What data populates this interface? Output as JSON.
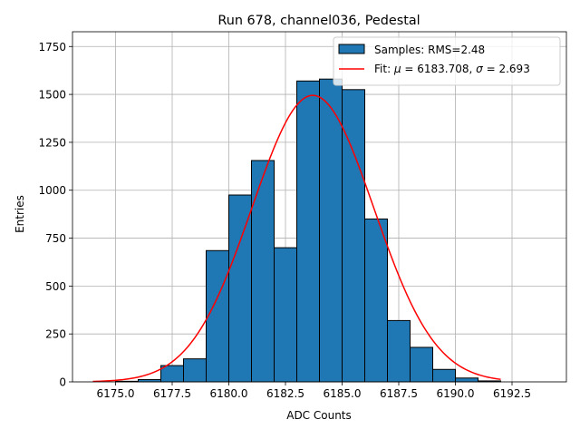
{
  "chart_data": {
    "type": "bar",
    "title": "Run 678, channel036, Pedestal",
    "xlabel": "ADC Counts",
    "ylabel": "Entries",
    "xlim": [
      6173.1,
      6194.9
    ],
    "ylim": [
      0,
      1827
    ],
    "grid": true,
    "legend_position": "top-right",
    "x_ticks": [
      6175.0,
      6177.5,
      6180.0,
      6182.5,
      6185.0,
      6187.5,
      6190.0,
      6192.5
    ],
    "x_tick_labels": [
      "6175.0",
      "6177.5",
      "6180.0",
      "6182.5",
      "6185.0",
      "6187.5",
      "6190.0",
      "6192.5"
    ],
    "y_ticks": [
      0,
      250,
      500,
      750,
      1000,
      1250,
      1500,
      1750
    ],
    "y_tick_labels": [
      "0",
      "250",
      "500",
      "750",
      "1000",
      "1250",
      "1500",
      "1750"
    ],
    "histogram": {
      "name": "Samples: RMS=2.48",
      "bin_edges": [
        6174,
        6175,
        6176,
        6177,
        6178,
        6179,
        6180,
        6181,
        6182,
        6183,
        6184,
        6185,
        6186,
        6187,
        6188,
        6189,
        6190,
        6191,
        6192,
        6193,
        6194
      ],
      "counts": [
        0,
        3,
        12,
        85,
        120,
        685,
        975,
        1155,
        700,
        1570,
        1580,
        1525,
        850,
        320,
        180,
        65,
        20,
        5,
        0,
        0
      ],
      "color": "#1f77b4",
      "edge_color": "#000000"
    },
    "fit": {
      "name_prefix": "Fit: ",
      "mu_label": "μ",
      "mu_value": "6183.708",
      "sigma_label": "σ",
      "sigma_value": "2.693",
      "mu": 6183.708,
      "sigma": 2.693,
      "amplitude": 1495,
      "x_range": [
        6174.0,
        6192.0
      ],
      "color": "#ff0000"
    },
    "legend": {
      "entries": [
        {
          "label": "Samples: RMS=2.48"
        },
        {
          "label": "Fit: μ = 6183.708, σ = 2.693"
        }
      ]
    }
  }
}
